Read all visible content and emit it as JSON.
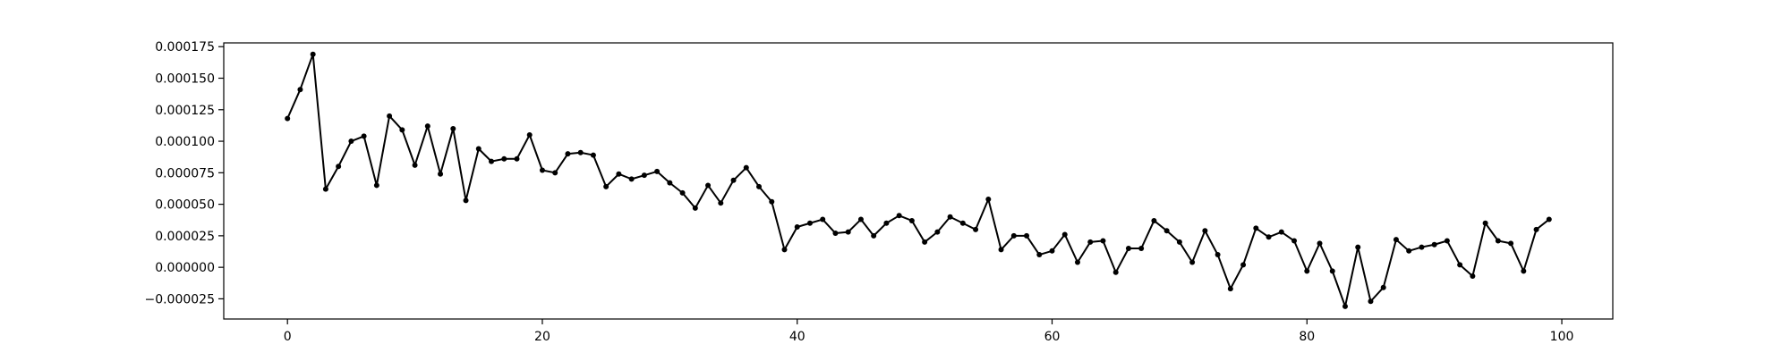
{
  "chart_data": {
    "type": "line",
    "title": "",
    "xlabel": "",
    "ylabel": "",
    "xlim": [
      -5,
      104
    ],
    "ylim": [
      -4.1e-05,
      0.000178
    ],
    "xticks": [
      0,
      20,
      40,
      60,
      80,
      100
    ],
    "xtick_labels": [
      "0",
      "20",
      "40",
      "60",
      "80",
      "100"
    ],
    "yticks": [
      -2.5e-05,
      0,
      2.5e-05,
      5e-05,
      7.5e-05,
      0.0001,
      0.000125,
      0.00015,
      0.000175
    ],
    "ytick_labels": [
      "−0.000025",
      "0.000000",
      "0.000025",
      "0.000050",
      "0.000075",
      "0.000100",
      "0.000125",
      "0.000150",
      "0.000175"
    ],
    "grid": false,
    "line_color": "#000000",
    "marker": "point",
    "series": [
      {
        "x": [
          0,
          1,
          2,
          3,
          4,
          5,
          6,
          7,
          8,
          9,
          10,
          11,
          12,
          13,
          14,
          15,
          16,
          17,
          18,
          19,
          20,
          21,
          22,
          23,
          24,
          25,
          26,
          27,
          28,
          29,
          30,
          31,
          32,
          33,
          34,
          35,
          36,
          37,
          38,
          39,
          40,
          41,
          42,
          43,
          44,
          45,
          46,
          47,
          48,
          49,
          50,
          51,
          52,
          53,
          54,
          55,
          56,
          57,
          58,
          59,
          60,
          61,
          62,
          63,
          64,
          65,
          66,
          67,
          68,
          69,
          70,
          71,
          72,
          73,
          74,
          75,
          76,
          77,
          78,
          79,
          80,
          81,
          82,
          83,
          84,
          85,
          86,
          87,
          88,
          89,
          90,
          91,
          92,
          93,
          94,
          95,
          96,
          97,
          98,
          99
        ],
        "values": [
          0.000118,
          0.000141,
          0.000169,
          6.2e-05,
          8e-05,
          0.0001,
          0.000104,
          6.5e-05,
          0.00012,
          0.000109,
          8.1e-05,
          0.000112,
          7.4e-05,
          0.00011,
          5.3e-05,
          9.4e-05,
          8.4e-05,
          8.6e-05,
          8.6e-05,
          0.000105,
          7.7e-05,
          7.5e-05,
          9e-05,
          9.1e-05,
          8.9e-05,
          6.4e-05,
          7.4e-05,
          7e-05,
          7.3e-05,
          7.6e-05,
          6.7e-05,
          5.9e-05,
          4.7e-05,
          6.5e-05,
          5.1e-05,
          6.9e-05,
          7.9e-05,
          6.4e-05,
          5.2e-05,
          1.4e-05,
          3.2e-05,
          3.5e-05,
          3.8e-05,
          2.7e-05,
          2.8e-05,
          3.8e-05,
          2.5e-05,
          3.5e-05,
          4.1e-05,
          3.7e-05,
          2e-05,
          2.8e-05,
          4e-05,
          3.5e-05,
          3e-05,
          5.4e-05,
          1.4e-05,
          2.5e-05,
          2.5e-05,
          1e-05,
          1.3e-05,
          2.6e-05,
          4e-06,
          2e-05,
          2.1e-05,
          -4e-06,
          1.5e-05,
          1.5e-05,
          3.7e-05,
          2.9e-05,
          2e-05,
          4e-06,
          2.9e-05,
          1e-05,
          -1.7e-05,
          2e-06,
          3.1e-05,
          2.4e-05,
          2.8e-05,
          2.1e-05,
          -3e-06,
          1.9e-05,
          -3e-06,
          -3.1e-05,
          1.6e-05,
          -2.7e-05,
          -1.6e-05,
          2.2e-05,
          1.3e-05,
          1.6e-05,
          1.8e-05,
          2.1e-05,
          2e-06,
          -7e-06,
          3.5e-05,
          2.1e-05,
          1.9e-05,
          -3e-06,
          3e-05,
          3.8e-05
        ]
      }
    ]
  }
}
